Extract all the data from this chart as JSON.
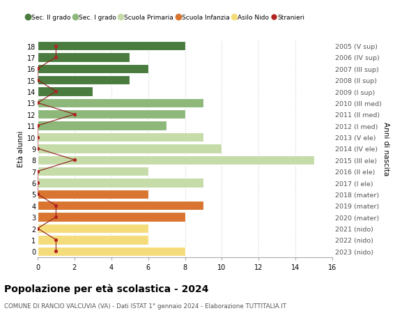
{
  "ages": [
    18,
    17,
    16,
    15,
    14,
    13,
    12,
    11,
    10,
    9,
    8,
    7,
    6,
    5,
    4,
    3,
    2,
    1,
    0
  ],
  "right_labels": [
    "2005 (V sup)",
    "2006 (IV sup)",
    "2007 (III sup)",
    "2008 (II sup)",
    "2009 (I sup)",
    "2010 (III med)",
    "2011 (II med)",
    "2012 (I med)",
    "2013 (V ele)",
    "2014 (IV ele)",
    "2015 (III ele)",
    "2016 (II ele)",
    "2017 (I ele)",
    "2018 (mater)",
    "2019 (mater)",
    "2020 (mater)",
    "2021 (nido)",
    "2022 (nido)",
    "2023 (nido)"
  ],
  "bar_values": [
    8,
    5,
    6,
    5,
    3,
    9,
    8,
    7,
    9,
    10,
    15,
    6,
    9,
    6,
    9,
    8,
    6,
    6,
    8
  ],
  "bar_colors": [
    "#4a7c3f",
    "#4a7c3f",
    "#4a7c3f",
    "#4a7c3f",
    "#4a7c3f",
    "#8db87a",
    "#8db87a",
    "#8db87a",
    "#c5dba8",
    "#c5dba8",
    "#c5dba8",
    "#c5dba8",
    "#c5dba8",
    "#d97530",
    "#d97530",
    "#d97530",
    "#f5dc7a",
    "#f5dc7a",
    "#f5dc7a"
  ],
  "stranieri_values": [
    1,
    1,
    0,
    0,
    1,
    0,
    2,
    0,
    0,
    0,
    2,
    0,
    0,
    0,
    1,
    1,
    0,
    1,
    1
  ],
  "legend_labels": [
    "Sec. II grado",
    "Sec. I grado",
    "Scuola Primaria",
    "Scuola Infanzia",
    "Asilo Nido",
    "Stranieri"
  ],
  "legend_colors": [
    "#4a7c3f",
    "#8db87a",
    "#c5dba8",
    "#d97530",
    "#f5dc7a",
    "#b22222"
  ],
  "title": "Popolazione per età scolastica - 2024",
  "subtitle": "COMUNE DI RANCIO VALCUVIA (VA) - Dati ISTAT 1° gennaio 2024 - Elaborazione TUTTITALIA.IT",
  "ylabel_left": "Età alunni",
  "ylabel_right": "Anni di nascita",
  "xlim": [
    0,
    16
  ],
  "xticks": [
    0,
    2,
    4,
    6,
    8,
    10,
    12,
    14,
    16
  ],
  "bg_color": "#ffffff",
  "grid_color": "#cccccc",
  "bar_height": 0.82
}
